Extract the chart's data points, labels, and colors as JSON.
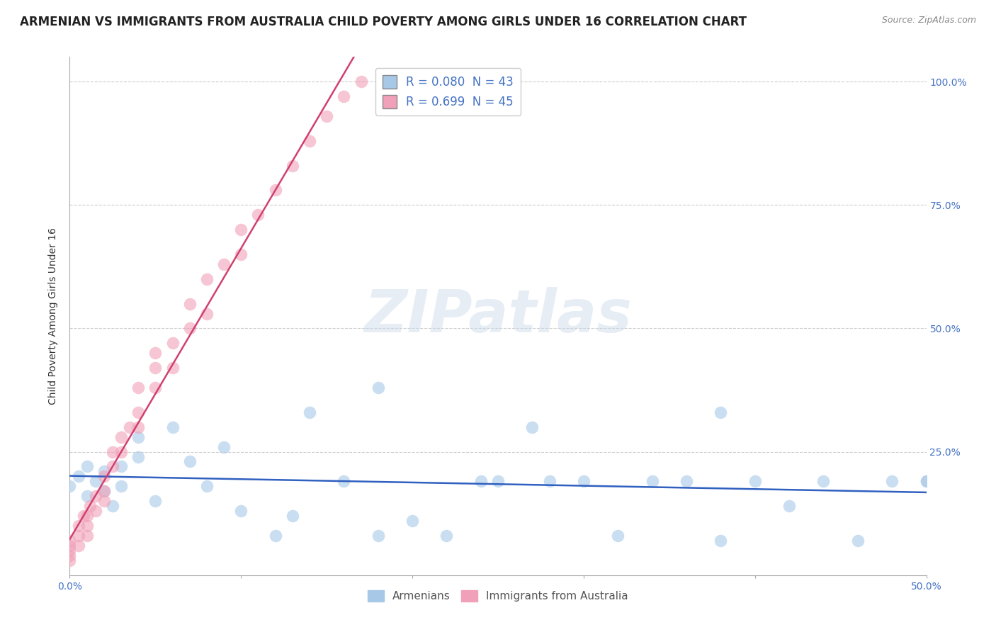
{
  "title": "ARMENIAN VS IMMIGRANTS FROM AUSTRALIA CHILD POVERTY AMONG GIRLS UNDER 16 CORRELATION CHART",
  "source": "Source: ZipAtlas.com",
  "ylabel": "Child Poverty Among Girls Under 16",
  "xlim": [
    0.0,
    0.5
  ],
  "ylim": [
    0.0,
    1.05
  ],
  "xtick_vals": [
    0.0,
    0.1,
    0.2,
    0.3,
    0.4,
    0.5
  ],
  "xticklabels": [
    "0.0%",
    "",
    "",
    "",
    "",
    "50.0%"
  ],
  "ytick_vals": [
    0.0,
    0.25,
    0.5,
    0.75,
    1.0
  ],
  "yticklabels_right": [
    "",
    "25.0%",
    "50.0%",
    "75.0%",
    "100.0%"
  ],
  "legend_label_arm": "R = 0.080  N = 43",
  "legend_label_aus": "R = 0.699  N = 45",
  "dot_color_armenians": "#a8c8e8",
  "dot_color_australia": "#f0a0b8",
  "line_color_armenians": "#3060c0",
  "line_color_australia": "#d04070",
  "title_fontsize": 12,
  "axis_label_fontsize": 10,
  "tick_fontsize": 10,
  "background_color": "#ffffff",
  "grid_color": "#cccccc",
  "watermark": "ZIPatlas",
  "armenians_x": [
    0.0,
    0.005,
    0.01,
    0.01,
    0.015,
    0.02,
    0.02,
    0.025,
    0.03,
    0.03,
    0.04,
    0.04,
    0.05,
    0.06,
    0.07,
    0.08,
    0.09,
    0.1,
    0.12,
    0.13,
    0.14,
    0.16,
    0.18,
    0.2,
    0.22,
    0.24,
    0.25,
    0.27,
    0.3,
    0.32,
    0.34,
    0.36,
    0.38,
    0.4,
    0.42,
    0.44,
    0.46,
    0.48,
    0.5,
    0.5,
    0.38,
    0.28,
    0.18
  ],
  "armenians_y": [
    0.18,
    0.2,
    0.16,
    0.22,
    0.19,
    0.21,
    0.17,
    0.14,
    0.18,
    0.22,
    0.28,
    0.24,
    0.15,
    0.3,
    0.23,
    0.18,
    0.26,
    0.13,
    0.08,
    0.12,
    0.33,
    0.19,
    0.08,
    0.11,
    0.08,
    0.19,
    0.19,
    0.3,
    0.19,
    0.08,
    0.19,
    0.19,
    0.33,
    0.19,
    0.14,
    0.19,
    0.07,
    0.19,
    0.19,
    0.19,
    0.07,
    0.19,
    0.38
  ],
  "australia_x": [
    0.0,
    0.0,
    0.0,
    0.0,
    0.0,
    0.005,
    0.005,
    0.005,
    0.008,
    0.01,
    0.01,
    0.01,
    0.012,
    0.015,
    0.015,
    0.02,
    0.02,
    0.02,
    0.025,
    0.025,
    0.03,
    0.03,
    0.035,
    0.04,
    0.04,
    0.04,
    0.05,
    0.05,
    0.05,
    0.06,
    0.06,
    0.07,
    0.07,
    0.08,
    0.08,
    0.09,
    0.1,
    0.1,
    0.11,
    0.12,
    0.13,
    0.14,
    0.15,
    0.16,
    0.17
  ],
  "australia_y": [
    0.03,
    0.04,
    0.05,
    0.06,
    0.07,
    0.06,
    0.08,
    0.1,
    0.12,
    0.08,
    0.1,
    0.12,
    0.14,
    0.13,
    0.16,
    0.15,
    0.17,
    0.2,
    0.22,
    0.25,
    0.25,
    0.28,
    0.3,
    0.3,
    0.33,
    0.38,
    0.38,
    0.42,
    0.45,
    0.42,
    0.47,
    0.5,
    0.55,
    0.53,
    0.6,
    0.63,
    0.65,
    0.7,
    0.73,
    0.78,
    0.83,
    0.88,
    0.93,
    0.97,
    1.0
  ]
}
